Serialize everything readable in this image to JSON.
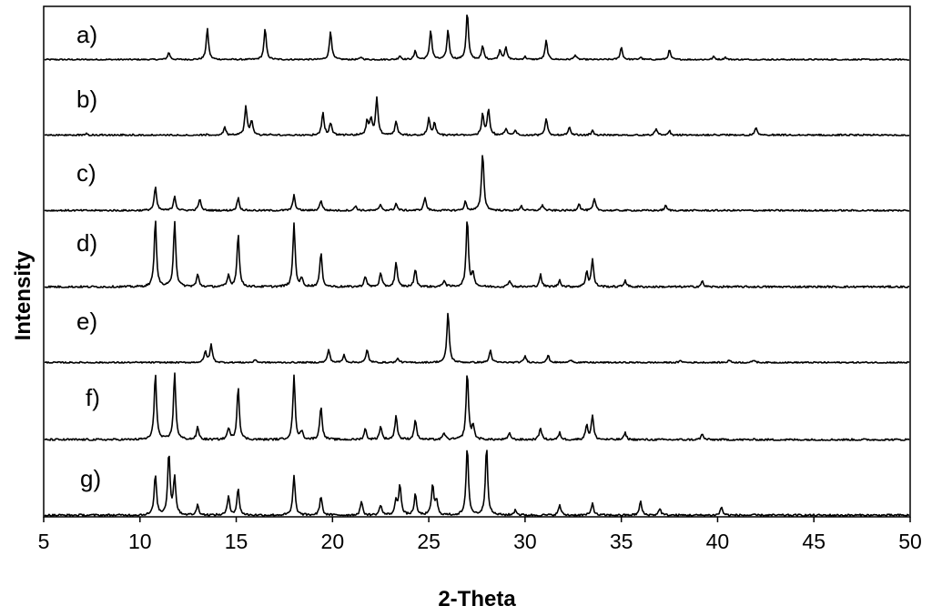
{
  "chart_data": {
    "type": "line",
    "xlabel": "2-Theta",
    "ylabel": "Intensity",
    "xlim": [
      5,
      50
    ],
    "xticks": [
      5,
      10,
      15,
      20,
      25,
      30,
      35,
      40,
      45,
      50
    ],
    "y_ticks_shown": false,
    "grid": false,
    "legend": "none",
    "line_color": "#000000",
    "series": [
      {
        "name": "a)",
        "peaks": [
          [
            11.5,
            0.15
          ],
          [
            13.5,
            0.65
          ],
          [
            16.5,
            0.65
          ],
          [
            19.9,
            0.6
          ],
          [
            21.5,
            0.05
          ],
          [
            23.5,
            0.08
          ],
          [
            24.3,
            0.18
          ],
          [
            25.1,
            0.62
          ],
          [
            26.0,
            0.62
          ],
          [
            27.0,
            1.0
          ],
          [
            27.8,
            0.28
          ],
          [
            28.7,
            0.2
          ],
          [
            29.0,
            0.25
          ],
          [
            30.0,
            0.06
          ],
          [
            31.1,
            0.4
          ],
          [
            32.6,
            0.1
          ],
          [
            35.0,
            0.26
          ],
          [
            36.0,
            0.05
          ],
          [
            37.5,
            0.2
          ],
          [
            39.8,
            0.06
          ],
          [
            40.4,
            0.05
          ]
        ]
      },
      {
        "name": "b)",
        "peaks": [
          [
            7.2,
            0.05
          ],
          [
            14.4,
            0.2
          ],
          [
            15.5,
            0.7
          ],
          [
            15.8,
            0.35
          ],
          [
            19.5,
            0.55
          ],
          [
            19.9,
            0.3
          ],
          [
            21.8,
            0.35
          ],
          [
            22.0,
            0.4
          ],
          [
            22.3,
            0.9
          ],
          [
            23.3,
            0.35
          ],
          [
            25.0,
            0.4
          ],
          [
            25.3,
            0.3
          ],
          [
            27.8,
            0.5
          ],
          [
            28.1,
            0.65
          ],
          [
            29.0,
            0.15
          ],
          [
            29.5,
            0.12
          ],
          [
            31.1,
            0.4
          ],
          [
            32.3,
            0.18
          ],
          [
            33.5,
            0.12
          ],
          [
            36.8,
            0.15
          ],
          [
            37.5,
            0.1
          ],
          [
            42.0,
            0.18
          ]
        ]
      },
      {
        "name": "c)",
        "peaks": [
          [
            10.8,
            0.4
          ],
          [
            11.8,
            0.25
          ],
          [
            13.1,
            0.2
          ],
          [
            15.1,
            0.22
          ],
          [
            18.0,
            0.26
          ],
          [
            19.4,
            0.18
          ],
          [
            21.2,
            0.08
          ],
          [
            22.5,
            0.1
          ],
          [
            23.3,
            0.12
          ],
          [
            24.8,
            0.23
          ],
          [
            26.9,
            0.15
          ],
          [
            27.8,
            1.0
          ],
          [
            29.8,
            0.08
          ],
          [
            30.9,
            0.1
          ],
          [
            32.8,
            0.12
          ],
          [
            33.6,
            0.2
          ],
          [
            37.3,
            0.08
          ]
        ]
      },
      {
        "name": "d)",
        "peaks": [
          [
            10.8,
            0.98
          ],
          [
            11.8,
            0.97
          ],
          [
            13.0,
            0.18
          ],
          [
            14.6,
            0.17
          ],
          [
            15.1,
            0.78
          ],
          [
            18.0,
            0.93
          ],
          [
            18.4,
            0.12
          ],
          [
            19.4,
            0.5
          ],
          [
            21.7,
            0.16
          ],
          [
            22.5,
            0.2
          ],
          [
            23.3,
            0.36
          ],
          [
            24.3,
            0.26
          ],
          [
            25.8,
            0.1
          ],
          [
            27.0,
            1.0
          ],
          [
            27.3,
            0.2
          ],
          [
            29.2,
            0.1
          ],
          [
            30.8,
            0.18
          ],
          [
            31.8,
            0.1
          ],
          [
            33.2,
            0.22
          ],
          [
            33.5,
            0.4
          ],
          [
            35.2,
            0.1
          ],
          [
            39.2,
            0.08
          ]
        ]
      },
      {
        "name": "e)",
        "peaks": [
          [
            13.4,
            0.22
          ],
          [
            13.7,
            0.35
          ],
          [
            16.0,
            0.06
          ],
          [
            19.8,
            0.26
          ],
          [
            20.6,
            0.15
          ],
          [
            21.8,
            0.25
          ],
          [
            23.4,
            0.08
          ],
          [
            26.0,
            1.0
          ],
          [
            28.2,
            0.24
          ],
          [
            30.0,
            0.13
          ],
          [
            31.2,
            0.14
          ],
          [
            32.4,
            0.06
          ],
          [
            38.1,
            0.04
          ],
          [
            40.6,
            0.05
          ],
          [
            41.9,
            0.05
          ]
        ]
      },
      {
        "name": "f)",
        "peaks": [
          [
            10.8,
            0.98
          ],
          [
            11.8,
            0.97
          ],
          [
            13.0,
            0.18
          ],
          [
            14.6,
            0.17
          ],
          [
            15.1,
            0.78
          ],
          [
            18.0,
            0.93
          ],
          [
            18.4,
            0.12
          ],
          [
            19.4,
            0.5
          ],
          [
            21.7,
            0.16
          ],
          [
            22.5,
            0.2
          ],
          [
            23.3,
            0.36
          ],
          [
            24.3,
            0.3
          ],
          [
            25.8,
            0.1
          ],
          [
            27.0,
            1.0
          ],
          [
            27.3,
            0.2
          ],
          [
            29.2,
            0.1
          ],
          [
            30.8,
            0.18
          ],
          [
            31.8,
            0.1
          ],
          [
            33.2,
            0.22
          ],
          [
            33.5,
            0.35
          ],
          [
            35.2,
            0.1
          ],
          [
            39.2,
            0.08
          ]
        ]
      },
      {
        "name": "g)",
        "peaks": [
          [
            10.8,
            0.59
          ],
          [
            11.5,
            0.9
          ],
          [
            11.8,
            0.55
          ],
          [
            13.0,
            0.15
          ],
          [
            14.6,
            0.28
          ],
          [
            15.1,
            0.38
          ],
          [
            18.0,
            0.57
          ],
          [
            19.4,
            0.28
          ],
          [
            21.5,
            0.2
          ],
          [
            22.5,
            0.15
          ],
          [
            23.3,
            0.2
          ],
          [
            23.5,
            0.45
          ],
          [
            24.3,
            0.3
          ],
          [
            25.2,
            0.44
          ],
          [
            25.4,
            0.2
          ],
          [
            27.0,
            1.0
          ],
          [
            28.0,
            1.0
          ],
          [
            29.5,
            0.08
          ],
          [
            31.8,
            0.15
          ],
          [
            33.5,
            0.18
          ],
          [
            36.0,
            0.2
          ],
          [
            37.0,
            0.1
          ],
          [
            40.2,
            0.12
          ]
        ]
      }
    ]
  }
}
